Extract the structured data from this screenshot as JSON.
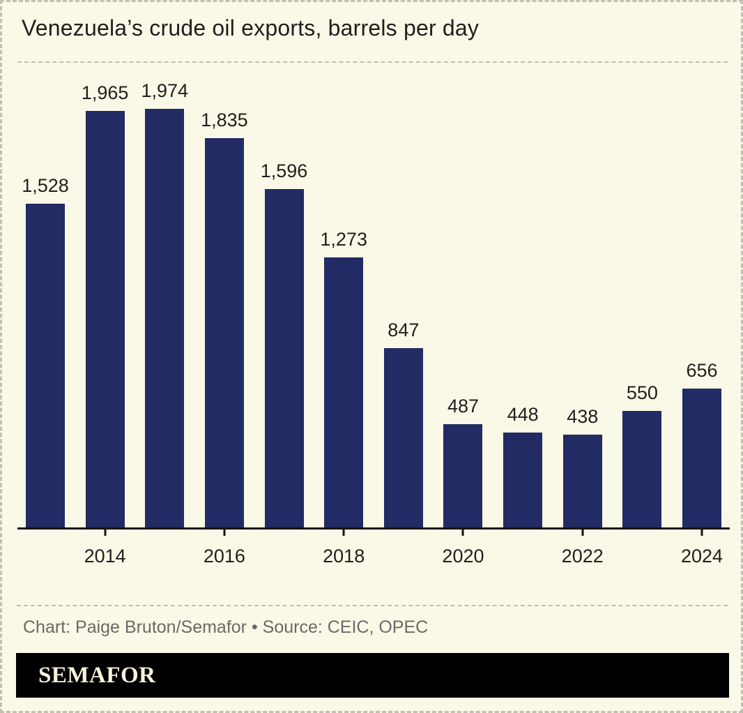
{
  "header": {
    "title": "Venezuela’s crude oil exports, barrels per day"
  },
  "chart_data": {
    "type": "bar",
    "title": "Venezuela’s crude oil exports, barrels per day",
    "categories": [
      "2013",
      "2014",
      "2015",
      "2016",
      "2017",
      "2018",
      "2019",
      "2020",
      "2021",
      "2022",
      "2023",
      "2024"
    ],
    "values": [
      1528,
      1965,
      1974,
      1835,
      1596,
      1273,
      847,
      487,
      448,
      438,
      550,
      656
    ],
    "value_labels": [
      "1,528",
      "1,965",
      "1,974",
      "1,835",
      "1,596",
      "1,273",
      "847",
      "487",
      "448",
      "438",
      "550",
      "656"
    ],
    "x_tick_labels": [
      "2014",
      "2016",
      "2018",
      "2020",
      "2022",
      "2024"
    ],
    "xlabel": "",
    "ylabel": "",
    "ylim": [
      0,
      1974
    ],
    "grid": false,
    "legend": "none",
    "bar_color": "#222b64"
  },
  "footer": {
    "credit": "Chart: Paige Bruton/Semafor • Source: CEIC, OPEC",
    "logo_text": "SEMAFOR"
  },
  "colors": {
    "background": "#faf8e6",
    "bar": "#222b64",
    "text": "#1f1f1f",
    "muted_text": "#696969",
    "dash": "#c0bfb5",
    "axis": "#141414",
    "logo_bg": "#000000",
    "logo_text": "#f7f2da"
  }
}
